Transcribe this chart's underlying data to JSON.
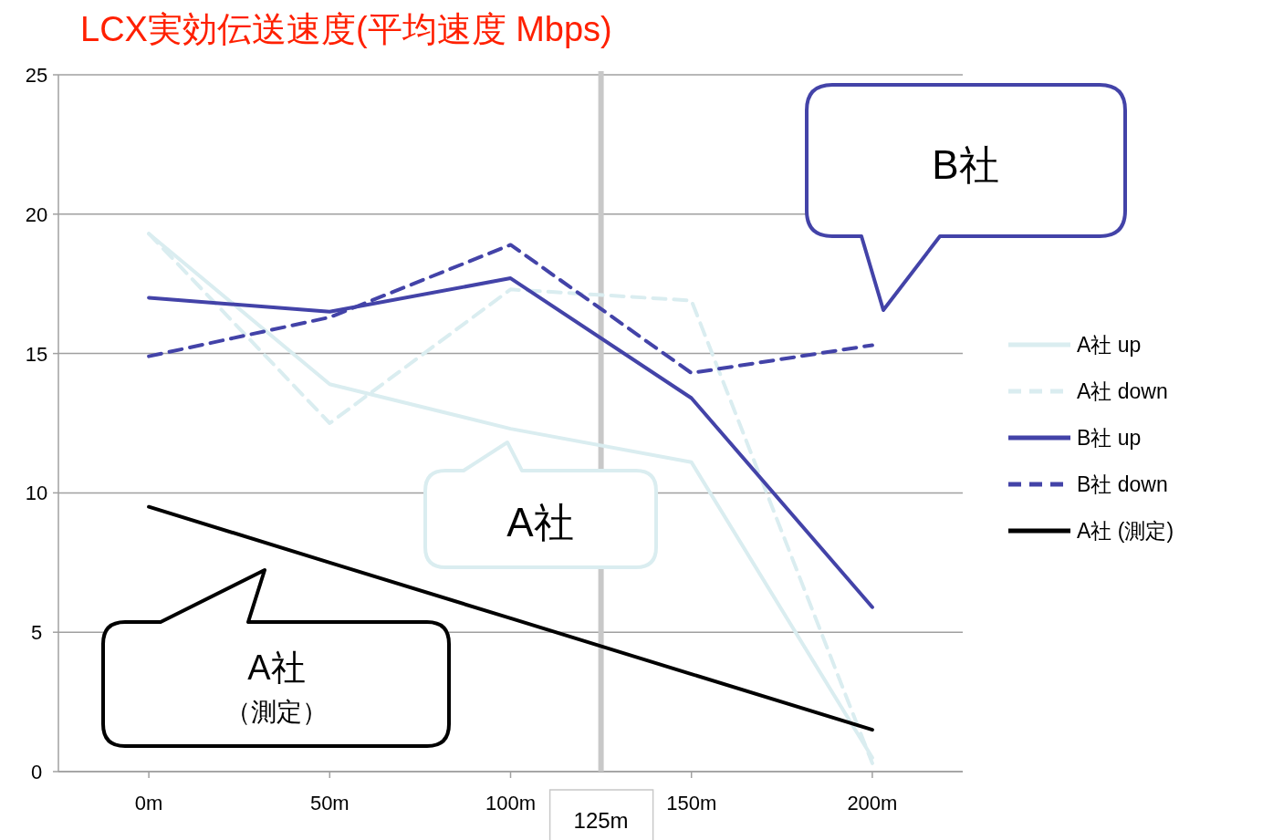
{
  "chart_data": {
    "type": "line",
    "title": "LCX実効伝送速度(平均速度 Mbps)",
    "x": [
      0,
      50,
      100,
      150,
      200
    ],
    "xlim": [
      -25,
      225
    ],
    "xticks": [
      {
        "value": 0,
        "label": "0m"
      },
      {
        "value": 50,
        "label": "50m"
      },
      {
        "value": 100,
        "label": "100m"
      },
      {
        "value": 150,
        "label": "150m"
      },
      {
        "value": 200,
        "label": "200m"
      }
    ],
    "ylim": [
      0,
      25
    ],
    "yticks": [
      0,
      5,
      10,
      15,
      20,
      25
    ],
    "grid": "y",
    "legend": "right",
    "marker": "none",
    "series": [
      {
        "name": "A社 up",
        "color": "#daedf0",
        "line_style": "solid",
        "values": [
          19.3,
          13.9,
          12.3,
          11.1,
          0.5
        ]
      },
      {
        "name": "A社 down",
        "color": "#daedf0",
        "line_style": "dashed",
        "values": [
          19.3,
          12.5,
          17.3,
          16.9,
          0.3
        ]
      },
      {
        "name": "B社 up",
        "color": "#4343a8",
        "line_style": "solid",
        "values": [
          17.0,
          16.5,
          17.7,
          13.4,
          5.9
        ]
      },
      {
        "name": "B社 down",
        "color": "#4343a8",
        "line_style": "dashed",
        "values": [
          14.9,
          16.3,
          18.9,
          14.3,
          15.3
        ]
      },
      {
        "name": "A社 (測定)",
        "color": "#000000",
        "line_style": "solid",
        "values": [
          9.5,
          7.5,
          5.5,
          3.5,
          1.5
        ]
      }
    ],
    "ref_lines": [
      {
        "axis": "x",
        "value": 125,
        "label": "125m",
        "color": "#c8c8c8"
      }
    ],
    "annotations": [
      "B社",
      "A社",
      "A社",
      "（測定）"
    ]
  }
}
